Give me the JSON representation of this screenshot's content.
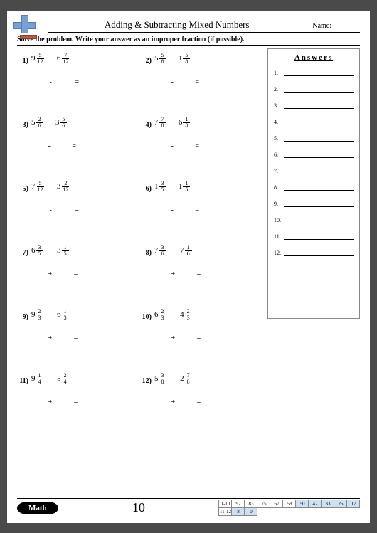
{
  "header": {
    "title": "Adding & Subtracting Mixed Numbers",
    "name_label": "Name:"
  },
  "instruction": "Solve the problem. Write your answer as an improper fraction (if possible).",
  "answers_title": "Answers",
  "page_number": "10",
  "footer_badge": "Math",
  "problems": [
    {
      "n": "1)",
      "a_w": "9",
      "a_n": "5",
      "a_d": "12",
      "op": "-",
      "b_w": "6",
      "b_n": "7",
      "b_d": "12"
    },
    {
      "n": "2)",
      "a_w": "5",
      "a_n": "5",
      "a_d": "8",
      "op": "-",
      "b_w": "1",
      "b_n": "5",
      "b_d": "8"
    },
    {
      "n": "3)",
      "a_w": "5",
      "a_n": "2",
      "a_d": "6",
      "op": "-",
      "b_w": "3",
      "b_n": "5",
      "b_d": "6"
    },
    {
      "n": "4)",
      "a_w": "7",
      "a_n": "7",
      "a_d": "8",
      "op": "-",
      "b_w": "6",
      "b_n": "1",
      "b_d": "8"
    },
    {
      "n": "5)",
      "a_w": "7",
      "a_n": "5",
      "a_d": "12",
      "op": "-",
      "b_w": "3",
      "b_n": "2",
      "b_d": "12"
    },
    {
      "n": "6)",
      "a_w": "1",
      "a_n": "3",
      "a_d": "5",
      "op": "-",
      "b_w": "1",
      "b_n": "1",
      "b_d": "5"
    },
    {
      "n": "7)",
      "a_w": "6",
      "a_n": "3",
      "a_d": "5",
      "op": "+",
      "b_w": "3",
      "b_n": "1",
      "b_d": "5"
    },
    {
      "n": "8)",
      "a_w": "7",
      "a_n": "3",
      "a_d": "6",
      "op": "+",
      "b_w": "7",
      "b_n": "1",
      "b_d": "6"
    },
    {
      "n": "9)",
      "a_w": "9",
      "a_n": "2",
      "a_d": "3",
      "op": "+",
      "b_w": "6",
      "b_n": "1",
      "b_d": "3"
    },
    {
      "n": "10)",
      "a_w": "6",
      "a_n": "2",
      "a_d": "3",
      "op": "+",
      "b_w": "4",
      "b_n": "2",
      "b_d": "3"
    },
    {
      "n": "11)",
      "a_w": "9",
      "a_n": "1",
      "a_d": "4",
      "op": "+",
      "b_w": "5",
      "b_n": "2",
      "b_d": "4"
    },
    {
      "n": "12)",
      "a_w": "5",
      "a_n": "3",
      "a_d": "8",
      "op": "+",
      "b_w": "2",
      "b_n": "7",
      "b_d": "8"
    }
  ],
  "answer_lines": [
    "1.",
    "2.",
    "3.",
    "4.",
    "5.",
    "6.",
    "7.",
    "8.",
    "9.",
    "10.",
    "11.",
    "12."
  ],
  "score": {
    "row1_label": "1-10",
    "row1_vals": [
      "92",
      "83",
      "75",
      "67",
      "58",
      "50",
      "42",
      "33",
      "25",
      "17"
    ],
    "row1_hl": [
      0,
      0,
      0,
      0,
      0,
      1,
      1,
      1,
      1,
      1
    ],
    "row2_label": "11-12",
    "row2_vals": [
      "8",
      "0"
    ],
    "row2_hl": [
      1,
      1
    ]
  },
  "colors": {
    "plus": "#7a9ed6",
    "minus": "#b85c4a",
    "highlight": "#cfe0f0"
  }
}
